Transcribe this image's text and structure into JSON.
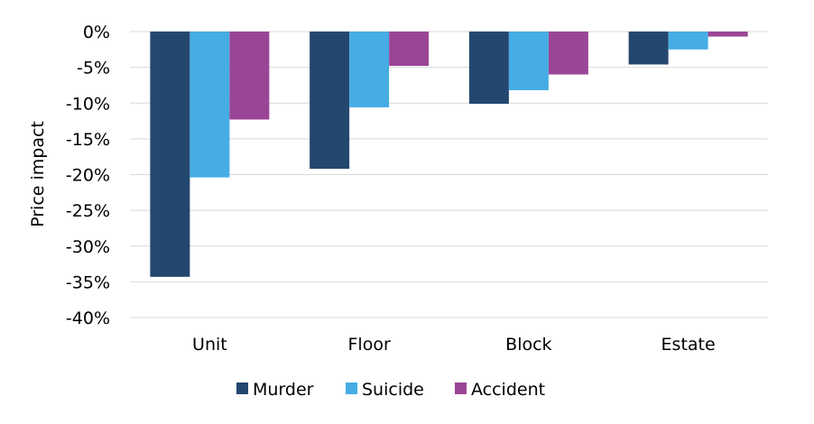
{
  "chart_data": {
    "type": "bar",
    "title": "",
    "xlabel": "",
    "ylabel": "Price impact",
    "ylim": [
      -40,
      0
    ],
    "yticks": [
      0,
      -5,
      -10,
      -15,
      -20,
      -25,
      -30,
      -35,
      -40
    ],
    "ytick_labels": [
      "0%",
      "-5%",
      "-10%",
      "-15%",
      "-20%",
      "-25%",
      "-30%",
      "-35%",
      "-40%"
    ],
    "grid": true,
    "legend_position": "bottom",
    "categories": [
      "Unit",
      "Floor",
      "Block",
      "Estate"
    ],
    "series": [
      {
        "name": "Murder",
        "color": "#24476f",
        "values": [
          -34.3,
          -19.2,
          -10.1,
          -4.6
        ]
      },
      {
        "name": "Suicide",
        "color": "#45ade3",
        "values": [
          -20.4,
          -10.6,
          -8.2,
          -2.5
        ]
      },
      {
        "name": "Accident",
        "color": "#9b4596",
        "values": [
          -12.3,
          -4.8,
          -6.0,
          -0.7
        ]
      }
    ]
  }
}
